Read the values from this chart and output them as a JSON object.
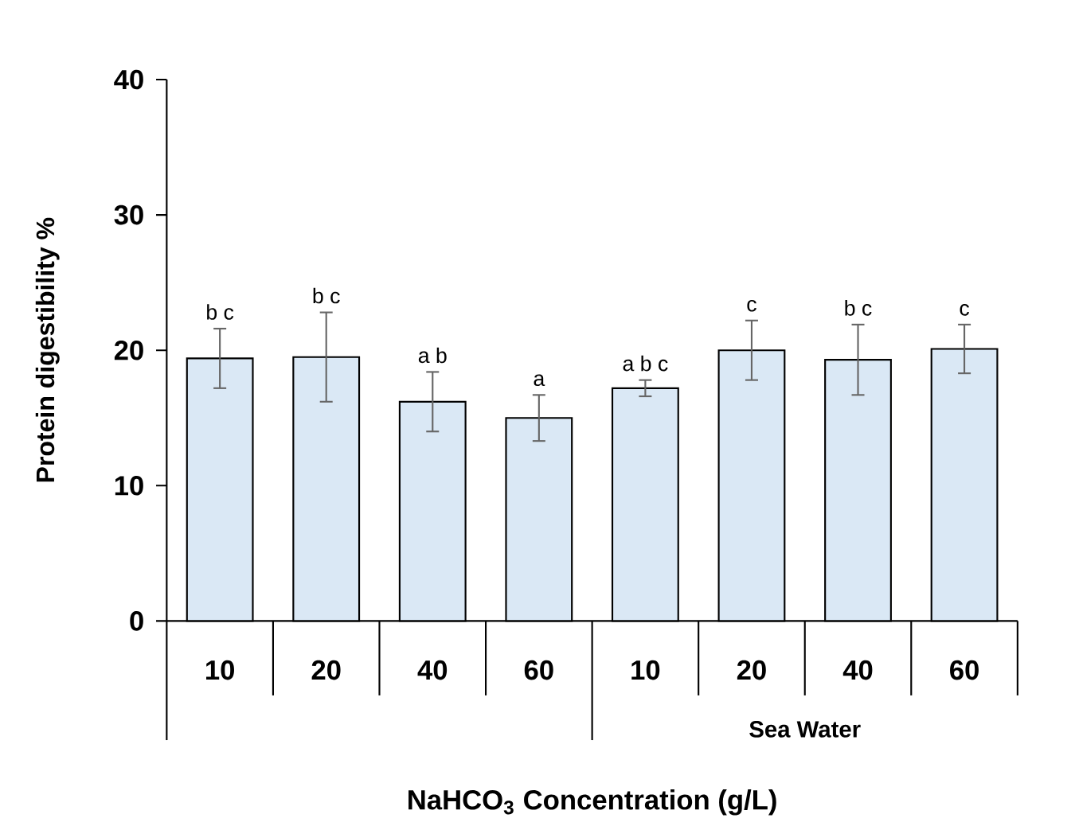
{
  "chart_data": {
    "type": "bar",
    "ylabel": "Protein digestibility %",
    "xlabel": "NaHCO$_{3}$ Concentration (g/L)",
    "categories": [
      "10",
      "20",
      "40",
      "60",
      "10",
      "20",
      "40",
      "60"
    ],
    "values": [
      19.4,
      19.5,
      16.2,
      15.0,
      17.2,
      20.0,
      19.3,
      20.1
    ],
    "errors": [
      2.2,
      3.3,
      2.2,
      1.7,
      0.6,
      2.2,
      2.6,
      1.8
    ],
    "color": "#dae8f5",
    "ylim": [
      0,
      40
    ],
    "yticks": [
      0,
      10,
      20,
      30,
      40
    ],
    "annotations": [
      "b c",
      "b c",
      "a b",
      "a",
      "a b c",
      "c",
      "b c",
      "c",
      "Sea Water"
    ],
    "grid": false
  }
}
